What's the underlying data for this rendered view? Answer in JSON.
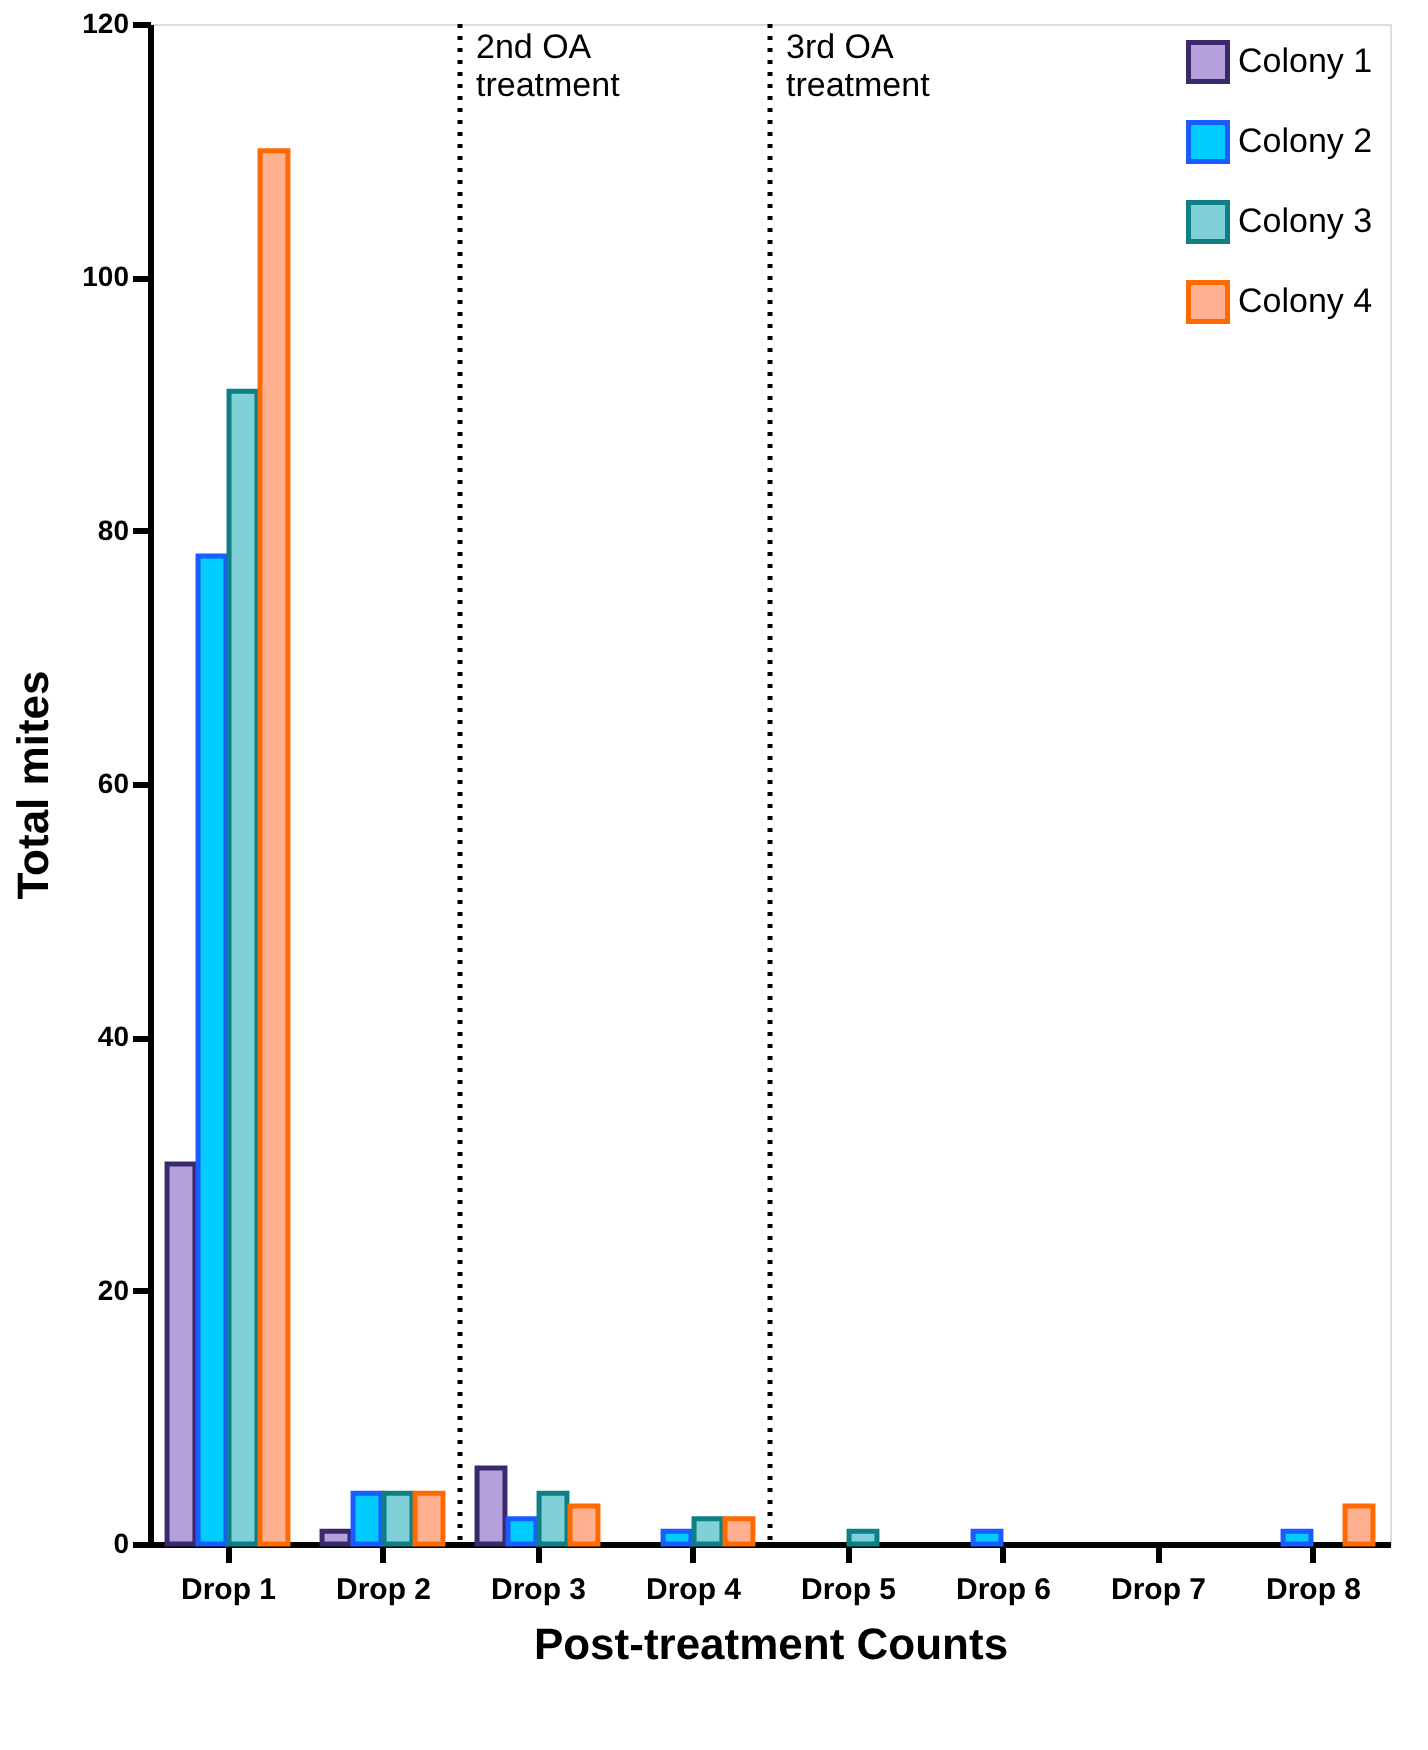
{
  "chart_data": {
    "type": "bar",
    "xlabel": "Post-treatment Counts",
    "ylabel": "Total mites",
    "categories": [
      "Drop 1",
      "Drop 2",
      "Drop 3",
      "Drop 4",
      "Drop 5",
      "Drop 6",
      "Drop 7",
      "Drop 8"
    ],
    "series": [
      {
        "name": "Colony 1",
        "color": "#b3a0dc",
        "values": [
          30,
          1,
          6,
          0,
          0,
          0,
          0,
          0
        ]
      },
      {
        "name": "Colony 2",
        "color": "#00ccff",
        "values": [
          78,
          4,
          2,
          1,
          0,
          1,
          0,
          1
        ]
      },
      {
        "name": "Colony 3",
        "color": "#80d0d8",
        "values": [
          91,
          4,
          4,
          2,
          1,
          0,
          0,
          0
        ]
      },
      {
        "name": "Colony 4",
        "color": "#ffb090",
        "values": [
          110,
          4,
          3,
          2,
          0,
          0,
          0,
          3
        ]
      }
    ],
    "ylim": [
      0,
      120
    ],
    "yticks": [
      0,
      20,
      40,
      60,
      80,
      100,
      120
    ],
    "annotations": [
      "2nd OA\ntreatment",
      "3rd OA\ntreatment"
    ],
    "grid": false,
    "legend": "top right"
  }
}
